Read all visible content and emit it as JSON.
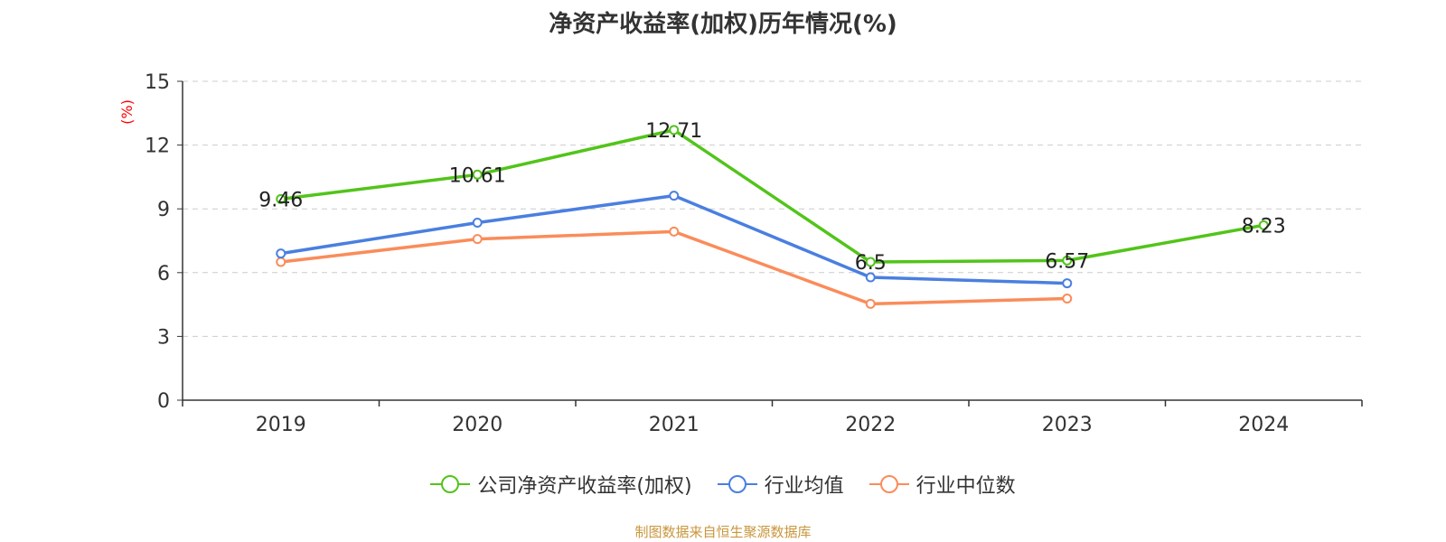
{
  "title": "净资产收益率(加权)历年情况(%)",
  "source": "制图数据来自恒生聚源数据库",
  "chart_data": {
    "type": "line",
    "title": "净资产收益率(加权)历年情况(%)",
    "ylabel": "(%)",
    "xlabel": "",
    "categories": [
      "2019",
      "2020",
      "2021",
      "2022",
      "2023",
      "2024"
    ],
    "ylim": [
      0,
      15
    ],
    "yticks": [
      0,
      3,
      6,
      9,
      12,
      15
    ],
    "grid": true,
    "legend_position": "bottom",
    "series": [
      {
        "name": "公司净资产收益率(加权)",
        "color": "#52c41a",
        "values": [
          9.46,
          10.61,
          12.71,
          6.5,
          6.57,
          8.23
        ],
        "labels": [
          "9.46",
          "10.61",
          "12.71",
          "6.5",
          "6.57",
          "8.23"
        ],
        "show_labels": true
      },
      {
        "name": "行业均值",
        "color": "#4a7fe0",
        "values": [
          6.9,
          8.35,
          9.62,
          5.78,
          5.5,
          null
        ],
        "show_labels": false
      },
      {
        "name": "行业中位数",
        "color": "#fa8c5a",
        "values": [
          6.5,
          7.58,
          7.93,
          4.53,
          4.78,
          null
        ],
        "show_labels": false
      }
    ]
  }
}
